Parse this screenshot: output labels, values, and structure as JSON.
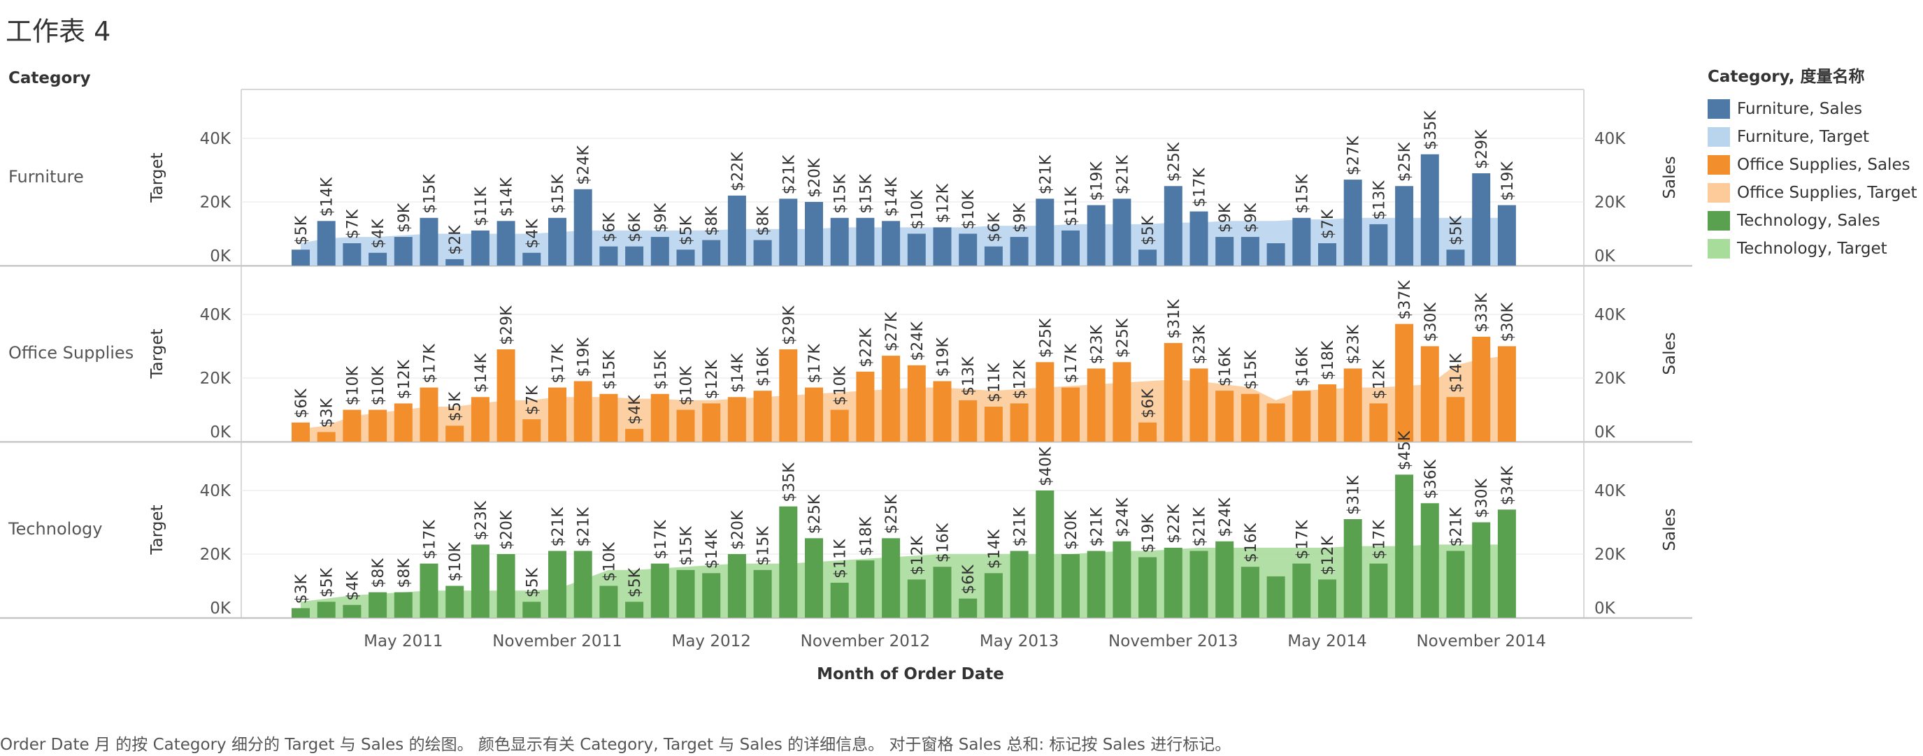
{
  "sheet": {
    "title": "工作表 4",
    "caption": "Order Date 月 的按 Category 细分的 Target 与 Sales 的绘图。 颜色显示有关 Category, Target 与 Sales 的详细信息。 对于窗格 Sales 总和: 标记按 Sales 进行标记。"
  },
  "legend": {
    "title": "Category, 度量名称",
    "items": [
      {
        "label": "Furniture, Sales",
        "color": "#4e79a7"
      },
      {
        "label": "Furniture, Target",
        "color": "#b9d5ee"
      },
      {
        "label": "Office Supplies, Sales",
        "color": "#f28e2b"
      },
      {
        "label": "Office Supplies, Target",
        "color": "#fdcb99"
      },
      {
        "label": "Technology, Sales",
        "color": "#59a14f"
      },
      {
        "label": "Technology, Target",
        "color": "#a8dc9b"
      }
    ]
  },
  "chart_data": {
    "type": "bar",
    "row_header": "Category",
    "xlabel": "Month of Order Date",
    "y_left_label": "Target",
    "y_right_label": "Sales",
    "ylim": [
      0,
      55000
    ],
    "y_ticks": [
      0,
      20000,
      40000
    ],
    "y_tick_labels": [
      "0K",
      "20K",
      "40K"
    ],
    "x_ticks": [
      {
        "month_index": 4,
        "label": "May 2011"
      },
      {
        "month_index": 10,
        "label": "November 2011"
      },
      {
        "month_index": 16,
        "label": "May 2012"
      },
      {
        "month_index": 22,
        "label": "November 2012"
      },
      {
        "month_index": 28,
        "label": "May 2013"
      },
      {
        "month_index": 34,
        "label": "November 2013"
      },
      {
        "month_index": 40,
        "label": "May 2014"
      },
      {
        "month_index": 46,
        "label": "November 2014"
      }
    ],
    "months": [
      "2011-01",
      "2011-02",
      "2011-03",
      "2011-04",
      "2011-05",
      "2011-06",
      "2011-07",
      "2011-08",
      "2011-09",
      "2011-10",
      "2011-11",
      "2011-12",
      "2012-01",
      "2012-02",
      "2012-03",
      "2012-04",
      "2012-05",
      "2012-06",
      "2012-07",
      "2012-08",
      "2012-09",
      "2012-10",
      "2012-11",
      "2012-12",
      "2013-01",
      "2013-02",
      "2013-03",
      "2013-04",
      "2013-05",
      "2013-06",
      "2013-07",
      "2013-08",
      "2013-09",
      "2013-10",
      "2013-11",
      "2013-12",
      "2014-01",
      "2014-02",
      "2014-03",
      "2014-04",
      "2014-05",
      "2014-06",
      "2014-07",
      "2014-08",
      "2014-09",
      "2014-10",
      "2014-11",
      "2014-12"
    ],
    "panels": [
      {
        "category": "Furniture",
        "sales_color": "#4e79a7",
        "target_color": "#b9d5ee",
        "sales": [
          5000,
          14000,
          7000,
          4000,
          9000,
          15000,
          2000,
          11000,
          14000,
          4000,
          15000,
          24000,
          6000,
          6000,
          9000,
          5000,
          8000,
          22000,
          8000,
          21000,
          20000,
          15000,
          15000,
          14000,
          10000,
          12000,
          10000,
          6000,
          9000,
          21000,
          11000,
          19000,
          21000,
          5000,
          25000,
          17000,
          9000,
          9000,
          7000,
          15000,
          7000,
          27000,
          13000,
          25000,
          35000,
          5000,
          29000,
          19000
        ],
        "sales_labels": [
          "$5K",
          "$14K",
          "$7K",
          "$4K",
          "$9K",
          "$15K",
          "$2K",
          "$11K",
          "$14K",
          "$4K",
          "$15K",
          "$24K",
          "$6K",
          "$6K",
          "$9K",
          "$5K",
          "$8K",
          "$22K",
          "$8K",
          "$21K",
          "$20K",
          "$15K",
          "$15K",
          "$14K",
          "$10K",
          "$12K",
          "$10K",
          "$6K",
          "$9K",
          "$21K",
          "$11K",
          "$19K",
          "$21K",
          "$5K",
          "$25K",
          "$17K",
          "$9K",
          "$9K",
          "",
          "$15K",
          "$7K",
          "$27K",
          "$13K",
          "$25K",
          "$35K",
          "$5K",
          "$29K",
          "$19K"
        ],
        "target": [
          7000,
          8500,
          9000,
          9000,
          9500,
          10000,
          10000,
          10000,
          10000,
          10000,
          10500,
          11000,
          11000,
          11000,
          11000,
          11000,
          11000,
          11500,
          11500,
          11500,
          11500,
          12000,
          12000,
          12000,
          12000,
          12000,
          12000,
          12500,
          12500,
          12500,
          13000,
          13000,
          13000,
          13000,
          13500,
          13500,
          14000,
          14000,
          14000,
          14500,
          14500,
          15000,
          15000,
          15000,
          15000,
          15000,
          15000,
          15000
        ]
      },
      {
        "category": "Office Supplies",
        "sales_color": "#f28e2b",
        "target_color": "#fdcb99",
        "sales": [
          6000,
          3000,
          10000,
          10000,
          12000,
          17000,
          5000,
          14000,
          29000,
          7000,
          17000,
          19000,
          15000,
          4000,
          15000,
          10000,
          12000,
          14000,
          16000,
          29000,
          17000,
          10000,
          22000,
          27000,
          24000,
          19000,
          13000,
          11000,
          12000,
          25000,
          17000,
          23000,
          25000,
          6000,
          31000,
          23000,
          16000,
          15000,
          12000,
          16000,
          18000,
          23000,
          12000,
          37000,
          30000,
          14000,
          33000,
          30000
        ],
        "sales_labels": [
          "$6K",
          "$3K",
          "$10K",
          "$10K",
          "$12K",
          "$17K",
          "$5K",
          "$14K",
          "$29K",
          "$7K",
          "$17K",
          "$19K",
          "$15K",
          "$4K",
          "$15K",
          "$10K",
          "$12K",
          "$14K",
          "$16K",
          "$29K",
          "$17K",
          "$10K",
          "$22K",
          "$27K",
          "$24K",
          "$19K",
          "$13K",
          "$11K",
          "$12K",
          "$25K",
          "$17K",
          "$23K",
          "$25K",
          "$6K",
          "$31K",
          "$23K",
          "$16K",
          "$15K",
          "",
          "$16K",
          "$18K",
          "$23K",
          "$12K",
          "$37K",
          "$30K",
          "$14K",
          "$33K",
          "$30K"
        ],
        "target": [
          4000,
          5000,
          8000,
          9000,
          10000,
          11000,
          11000,
          12000,
          13000,
          13000,
          14000,
          14000,
          14000,
          13500,
          13500,
          13000,
          13000,
          13500,
          14000,
          14500,
          15000,
          15500,
          16000,
          16500,
          17000,
          17000,
          16500,
          16000,
          16500,
          17000,
          17500,
          18000,
          18500,
          19000,
          19500,
          19000,
          18000,
          17000,
          13000,
          16000,
          16500,
          17000,
          17000,
          17500,
          18000,
          24000,
          26000,
          27000
        ]
      },
      {
        "category": "Technology",
        "sales_color": "#59a14f",
        "target_color": "#a8dc9b",
        "sales": [
          3000,
          5000,
          4000,
          8000,
          8000,
          17000,
          10000,
          23000,
          20000,
          5000,
          21000,
          21000,
          10000,
          5000,
          17000,
          15000,
          14000,
          20000,
          15000,
          35000,
          25000,
          11000,
          18000,
          25000,
          12000,
          16000,
          6000,
          14000,
          21000,
          40000,
          20000,
          21000,
          24000,
          19000,
          22000,
          21000,
          24000,
          16000,
          13000,
          17000,
          12000,
          31000,
          17000,
          45000,
          36000,
          21000,
          30000,
          34000
        ],
        "sales_labels": [
          "$3K",
          "$5K",
          "$4K",
          "$8K",
          "$8K",
          "$17K",
          "$10K",
          "$23K",
          "$20K",
          "$5K",
          "$21K",
          "$21K",
          "$10K",
          "$5K",
          "$17K",
          "$15K",
          "$14K",
          "$20K",
          "$15K",
          "$35K",
          "$25K",
          "$11K",
          "$18K",
          "$25K",
          "$12K",
          "$16K",
          "$6K",
          "$14K",
          "$21K",
          "$40K",
          "$20K",
          "$21K",
          "$24K",
          "$19K",
          "$22K",
          "$21K",
          "$24K",
          "$16K",
          "",
          "$17K",
          "$12K",
          "$31K",
          "$17K",
          "$45K",
          "$36K",
          "$21K",
          "$30K",
          "$34K"
        ],
        "target": [
          5000,
          6000,
          7000,
          7500,
          8000,
          8500,
          8500,
          8500,
          8500,
          8500,
          9000,
          12000,
          15000,
          15000,
          15500,
          16000,
          16500,
          17000,
          17000,
          17000,
          17500,
          18000,
          18500,
          19000,
          19500,
          20000,
          20000,
          20000,
          20000,
          20000,
          20000,
          20500,
          21000,
          21000,
          21500,
          22000,
          22000,
          22000,
          22000,
          22000,
          22000,
          22500,
          22500,
          22500,
          23000,
          23000,
          23000,
          23000
        ]
      }
    ]
  }
}
